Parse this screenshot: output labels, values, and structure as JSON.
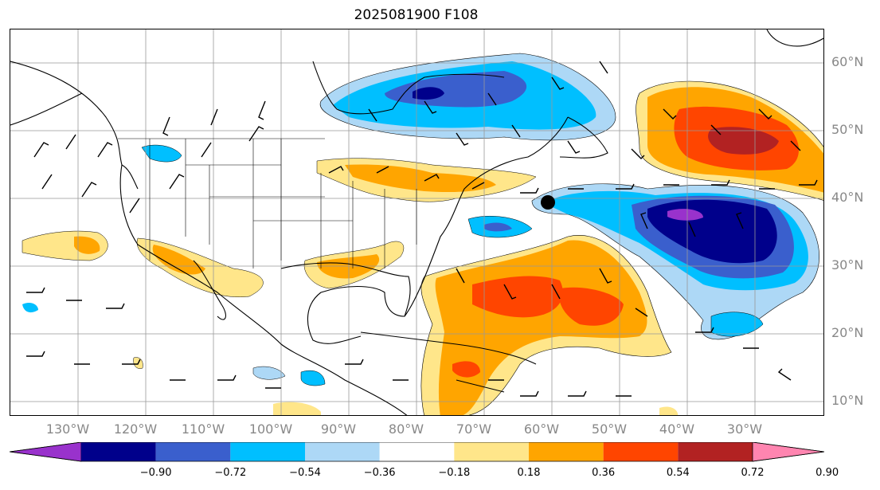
{
  "title": "2025081900 F108",
  "axes": {
    "lon_ticks": [
      "130°W",
      "120°W",
      "110°W",
      "100°W",
      "90°W",
      "80°W",
      "70°W",
      "60°W",
      "50°W",
      "40°W",
      "30°W"
    ],
    "lat_ticks": [
      "60°N",
      "50°N",
      "40°N",
      "30°N",
      "20°N",
      "10°N"
    ],
    "lon_range": [
      -140,
      -20
    ],
    "lat_range": [
      7,
      64
    ]
  },
  "colorbar": {
    "levels": [
      "−0.90",
      "−0.72",
      "−0.54",
      "−0.36",
      "−0.18",
      "0.18",
      "0.36",
      "0.54",
      "0.72",
      "0.90"
    ],
    "colors": [
      "#9932cc",
      "#00008b",
      "#3a5fcd",
      "#00bfff",
      "#add8f6",
      "#ffffff",
      "#ffe68a",
      "#ffa500",
      "#ff4500",
      "#b22222",
      "#ff85b0"
    ]
  },
  "storm_marker": {
    "lon": -60,
    "lat": 39.5
  },
  "map_layers": {
    "coastlines": "black",
    "state_borders": "black",
    "gridlines": "gray",
    "wind_barbs": "black"
  }
}
